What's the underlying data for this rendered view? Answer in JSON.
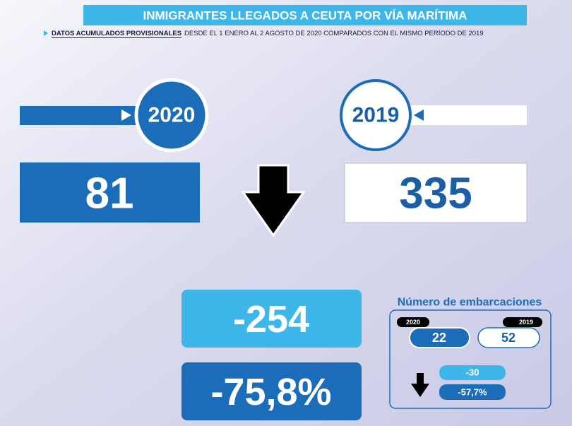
{
  "header": {
    "title": "INMIGRANTES LLEGADOS A CEUTA POR VÍA MARÍTIMA",
    "subtitle_bold": "DATOS ACUMULADOS PROVISIONALES",
    "subtitle": "DESDE EL 1 ENERO AL 2 AGOSTO DE 2020 COMPARADOS CON EL MISMO PERÍODO DE 2019"
  },
  "comparison": {
    "year_current": "2020",
    "year_previous": "2019",
    "value_current": "81",
    "value_previous": "335",
    "difference": "-254",
    "percent_change": "-75,8%"
  },
  "boats": {
    "title": "Número de embarcaciones",
    "year_current": "2020",
    "year_previous": "2019",
    "value_current": "22",
    "value_previous": "52",
    "difference": "-30",
    "percent_change": "-57,7%"
  }
}
